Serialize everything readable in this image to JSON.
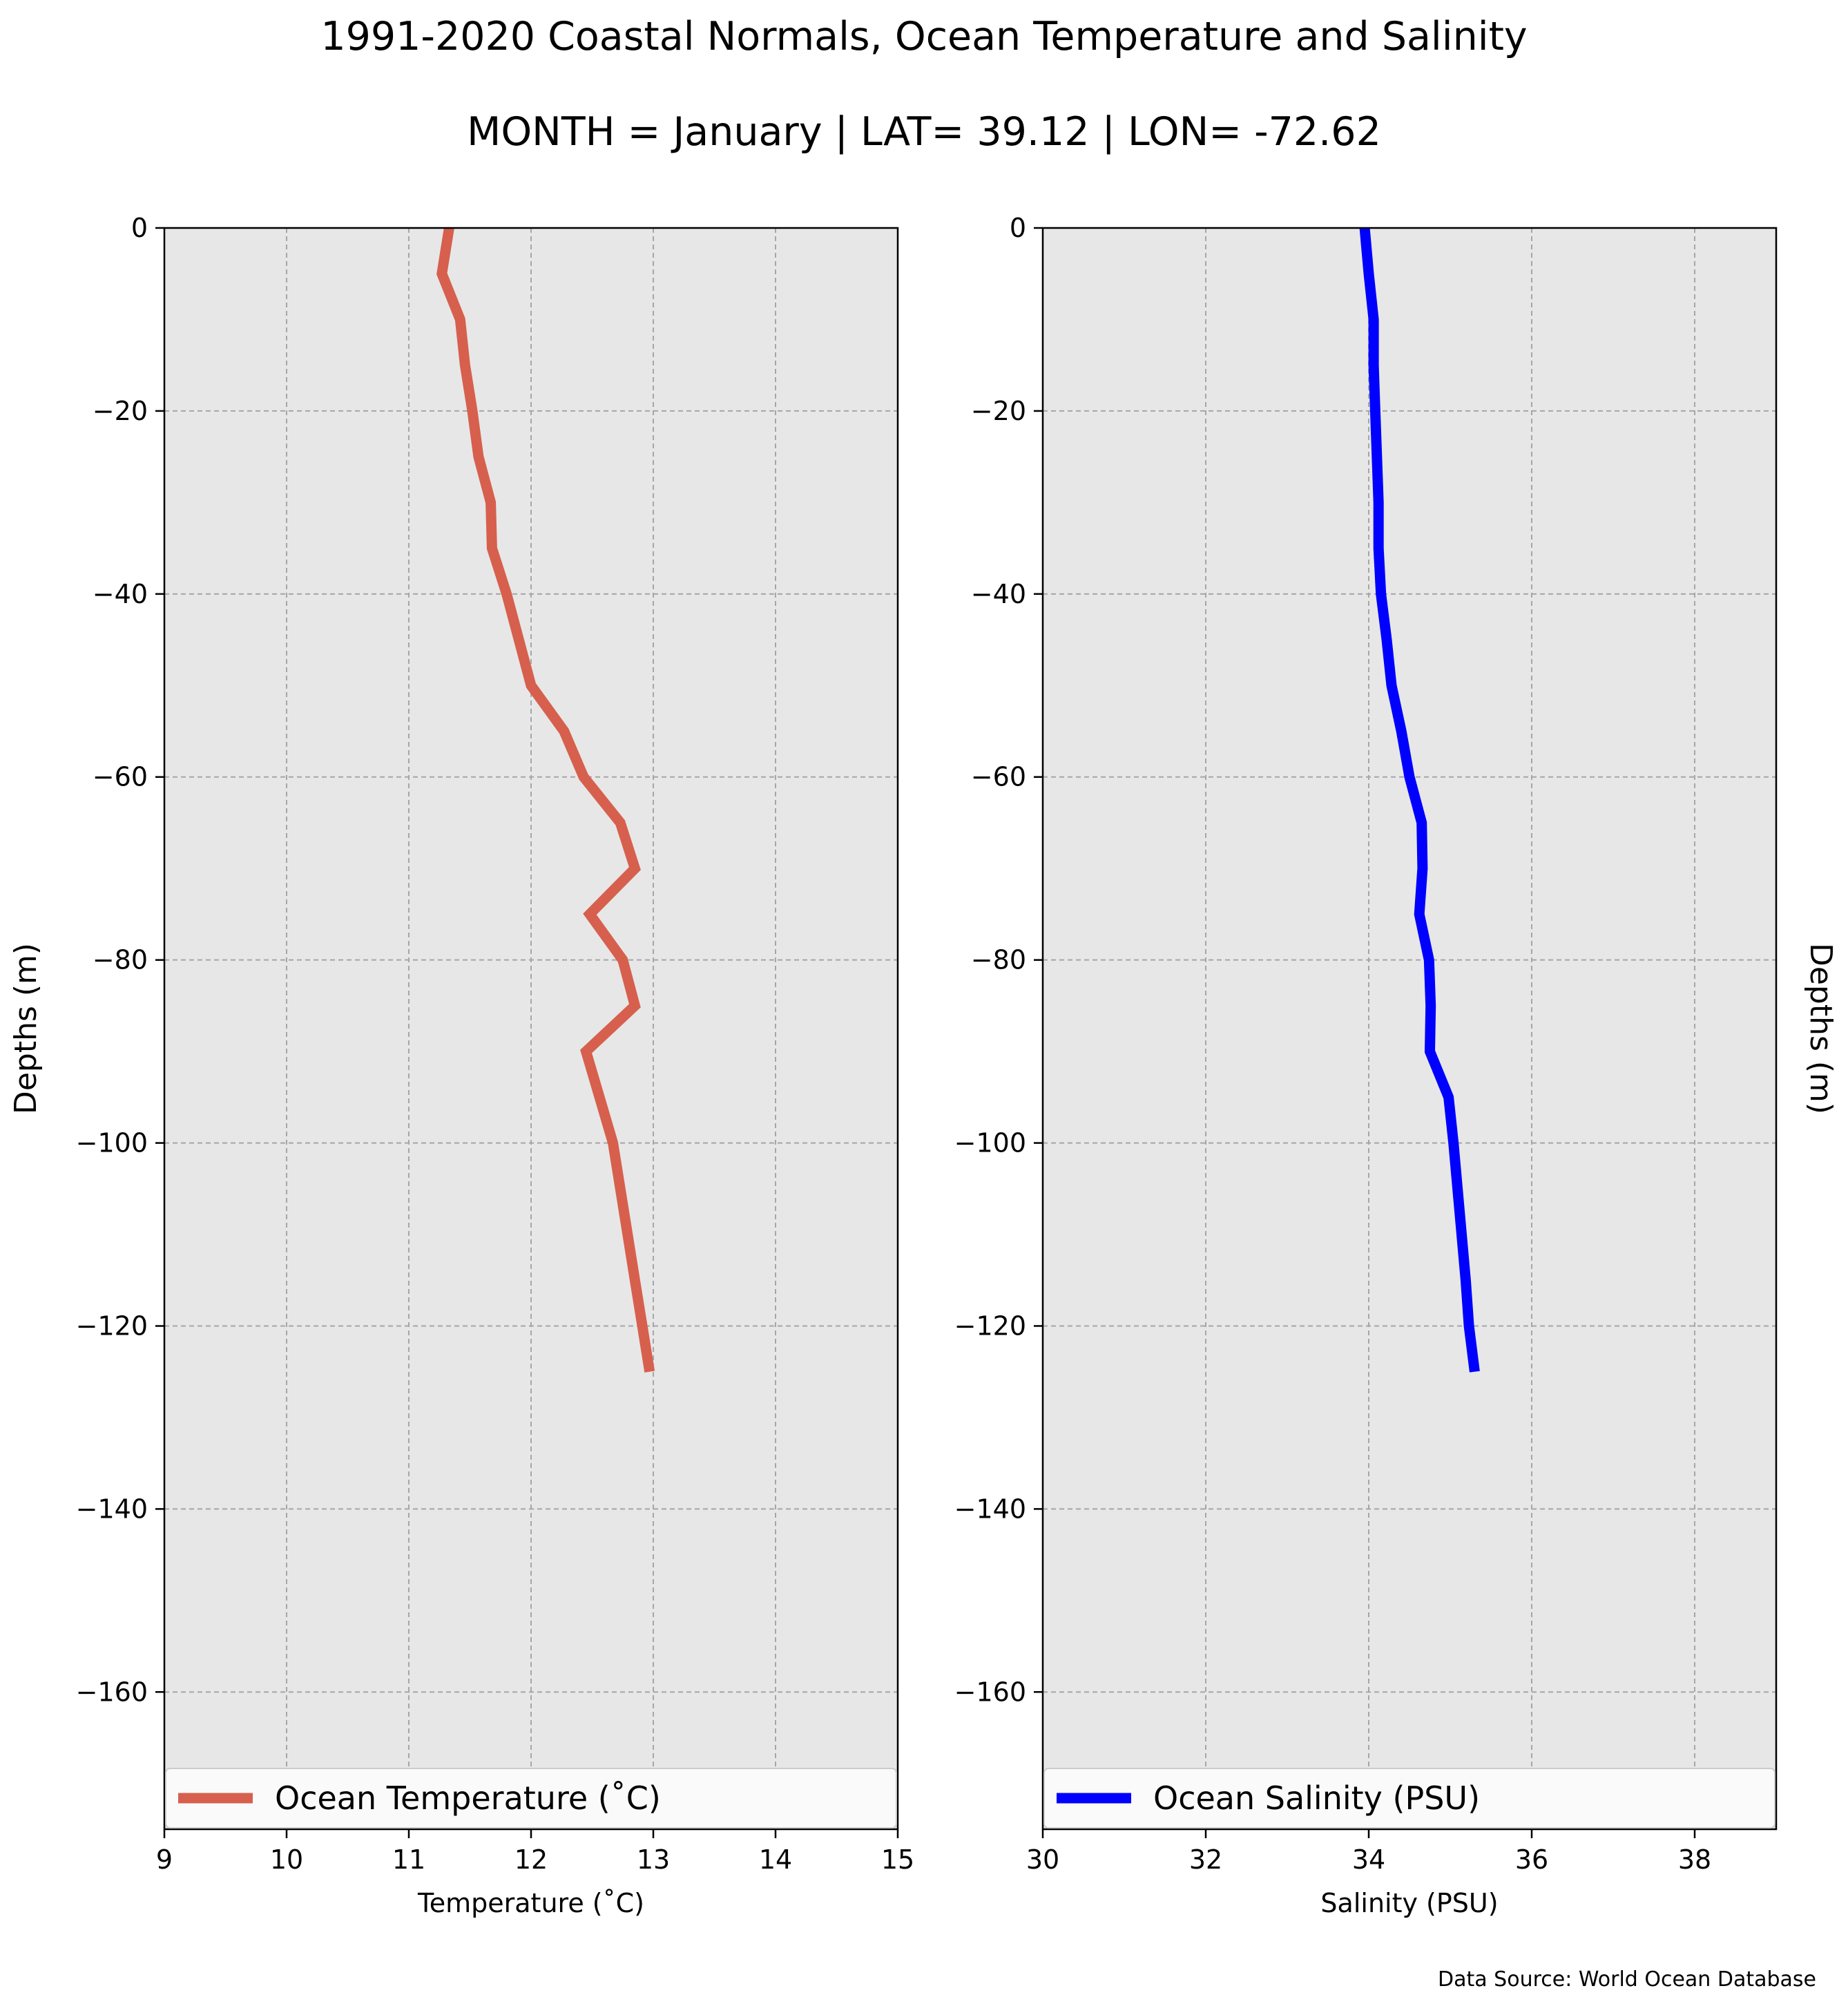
{
  "figure": {
    "title": "1991-2020 Coastal Normals, Ocean Temperature and Salinity",
    "subtitle": "MONTH = January | LAT= 39.12 | LON= -72.62",
    "source": "Data Source: World Ocean Database"
  },
  "chart_data": [
    {
      "type": "line",
      "xlabel": "Temperature ($^\\circ$C)",
      "xlabel_display": "Temperature (˚C)",
      "ylabel": "Depths (m)",
      "xlim": [
        9,
        15
      ],
      "ylim": [
        -175,
        0
      ],
      "xticks": [
        9,
        10,
        11,
        12,
        13,
        14,
        15
      ],
      "yticks": [
        0,
        -20,
        -40,
        -60,
        -80,
        -100,
        -120,
        -140,
        -160
      ],
      "ytick_labels": [
        "0",
        "−20",
        "−40",
        "−60",
        "−80",
        "−100",
        "−120",
        "−140",
        "−160"
      ],
      "grid": true,
      "legend_position": "bottom",
      "series": [
        {
          "name": "Ocean Temperature (˚C)",
          "color": "#d6604d",
          "x": [
            11.33,
            11.27,
            11.42,
            11.46,
            11.52,
            11.57,
            11.67,
            11.68,
            11.8,
            11.9,
            12.0,
            12.27,
            12.43,
            12.73,
            12.85,
            12.48,
            12.75,
            12.85,
            12.45,
            12.56,
            12.67,
            12.73,
            12.79,
            12.85,
            12.91,
            12.97
          ],
          "y": [
            0,
            -5,
            -10,
            -15,
            -20,
            -25,
            -30,
            -35,
            -40,
            -45,
            -50,
            -55,
            -60,
            -65,
            -70,
            -75,
            -80,
            -85,
            -90,
            -95,
            -100,
            -105,
            -110,
            -115,
            -120,
            -125
          ]
        }
      ]
    },
    {
      "type": "line",
      "xlabel": "Salinity (PSU)",
      "ylabel": "Depths (m)",
      "xlim": [
        30,
        39
      ],
      "ylim": [
        -175,
        0
      ],
      "xticks": [
        30,
        32,
        34,
        36,
        38
      ],
      "yticks": [
        0,
        -20,
        -40,
        -60,
        -80,
        -100,
        -120,
        -140,
        -160
      ],
      "ytick_labels": [
        "0",
        "−20",
        "−40",
        "−60",
        "−80",
        "−100",
        "−120",
        "−140",
        "−160"
      ],
      "grid": true,
      "legend_position": "bottom",
      "series": [
        {
          "name": "Ocean Salinity (PSU)",
          "color": "#0000ff",
          "x": [
            33.95,
            34.0,
            34.06,
            34.06,
            34.08,
            34.1,
            34.12,
            34.12,
            34.15,
            34.22,
            34.28,
            34.4,
            34.5,
            34.65,
            34.66,
            34.62,
            34.74,
            34.76,
            34.75,
            34.98,
            35.04,
            35.09,
            35.14,
            35.19,
            35.23,
            35.3
          ],
          "y": [
            0,
            -5,
            -10,
            -15,
            -20,
            -25,
            -30,
            -35,
            -40,
            -45,
            -50,
            -55,
            -60,
            -65,
            -70,
            -75,
            -80,
            -85,
            -90,
            -95,
            -100,
            -105,
            -110,
            -115,
            -120,
            -125
          ]
        }
      ]
    }
  ]
}
